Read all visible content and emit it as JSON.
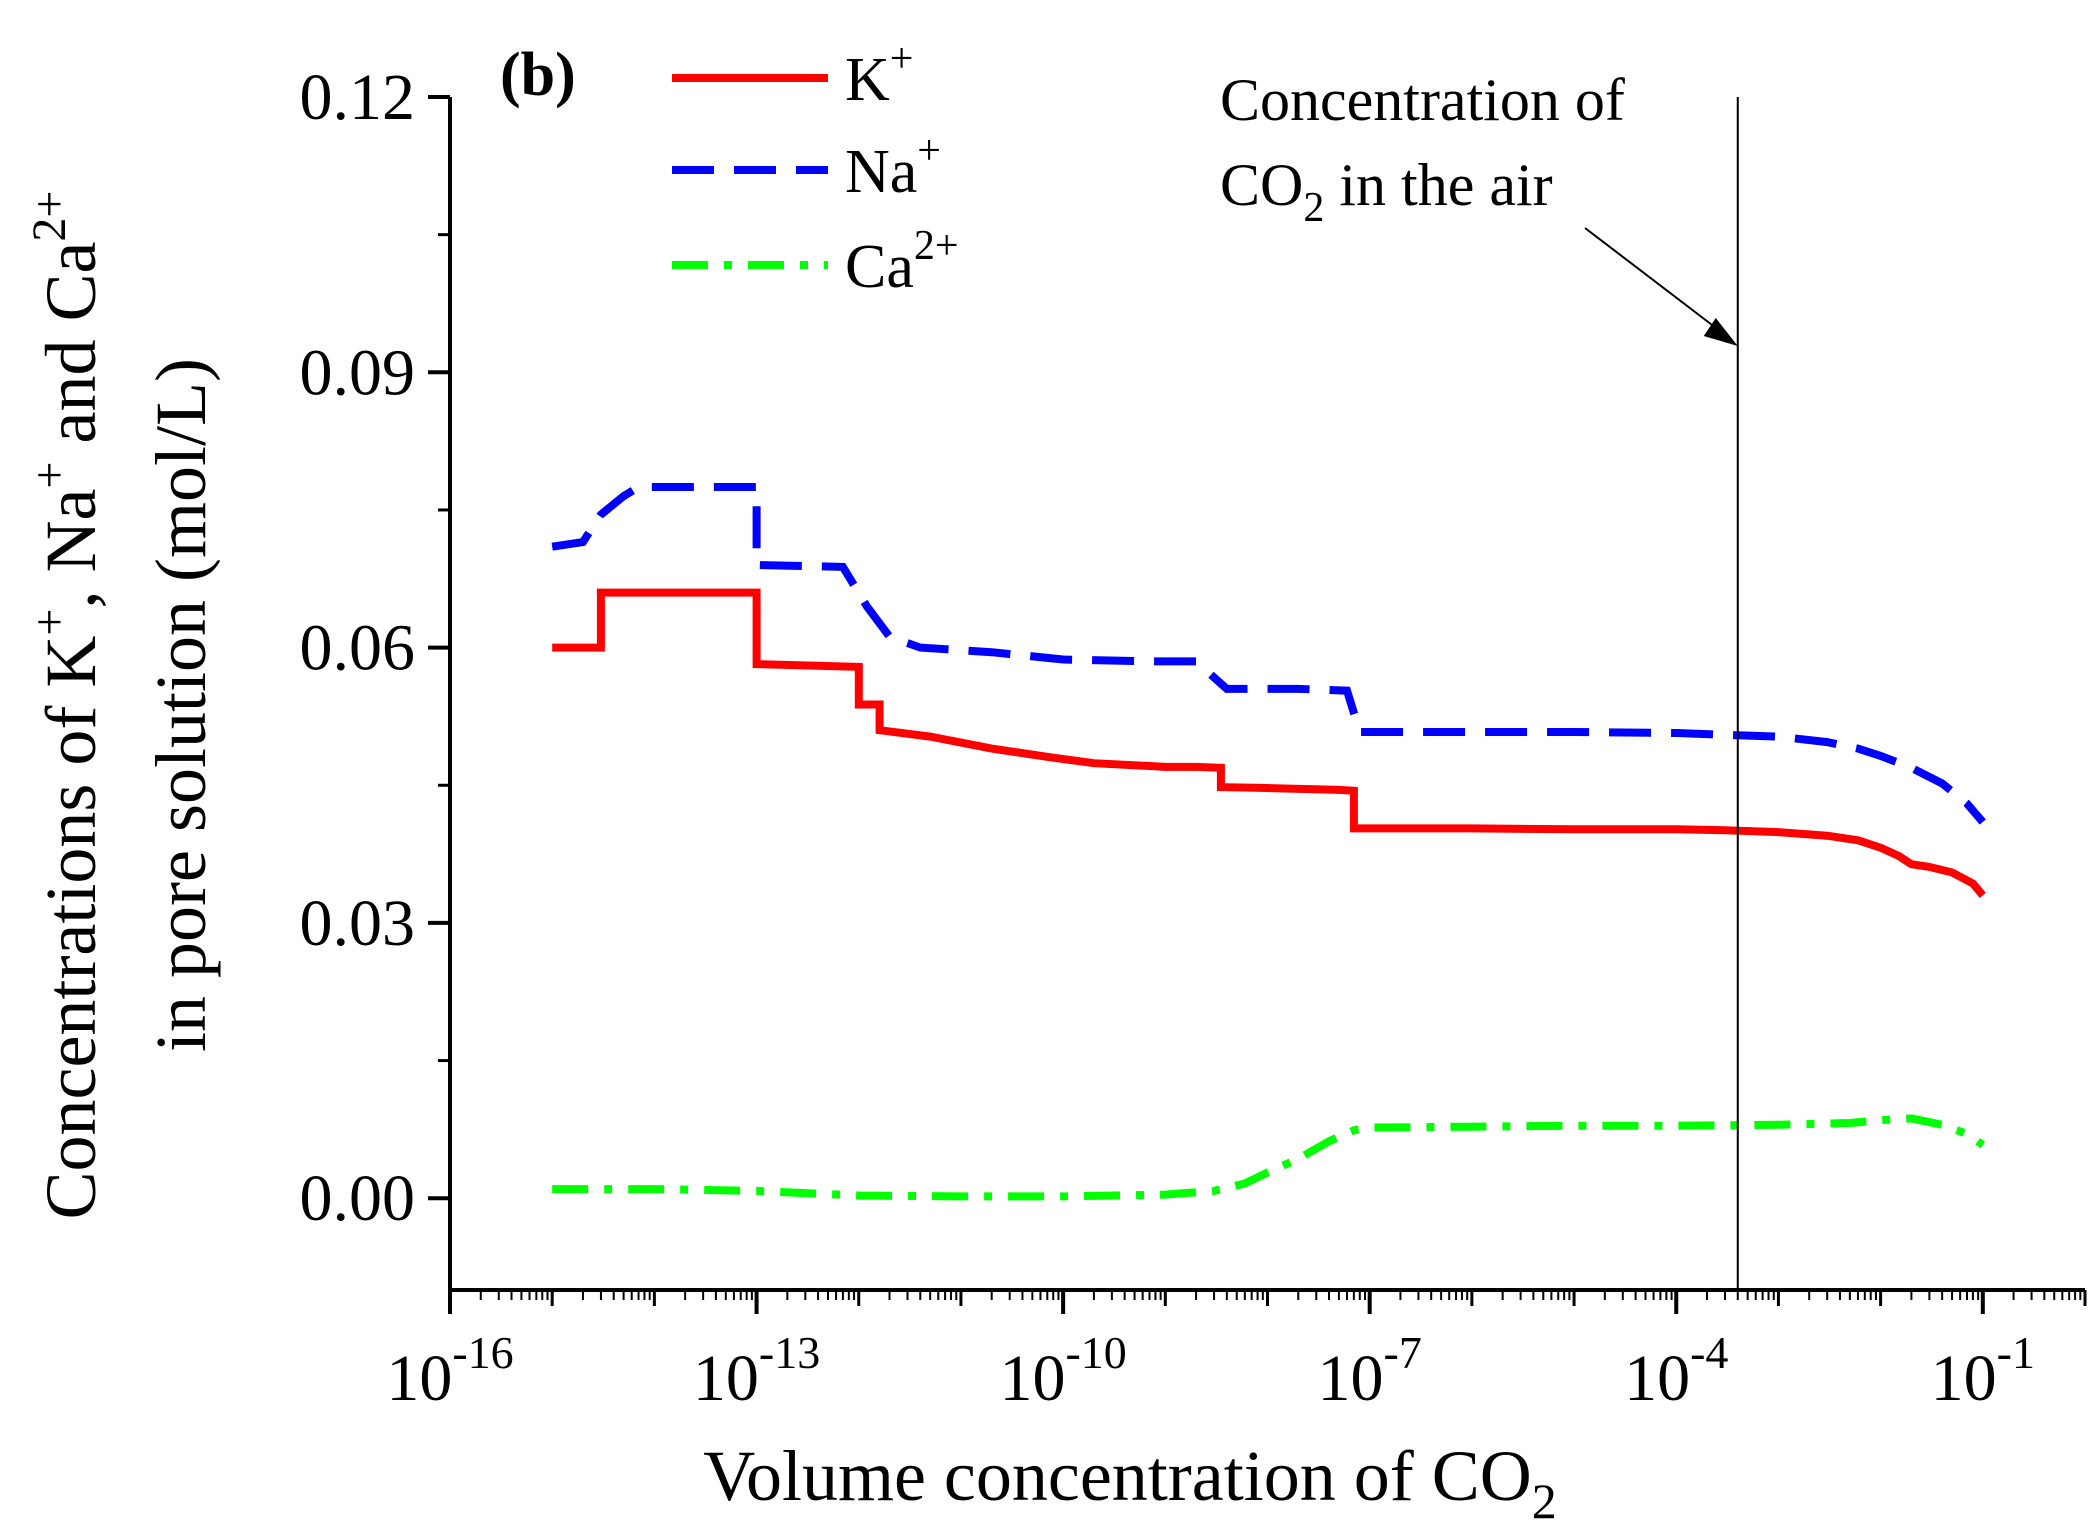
{
  "chart_data": {
    "type": "line",
    "panel_label": "(b)",
    "xlabel": {
      "main": "Volume concentration of CO",
      "sub": "2"
    },
    "ylabel": {
      "line1": [
        {
          "t": "Concentrations of K",
          "sup": false
        },
        {
          "t": "+",
          "sup": true
        },
        {
          "t": ", Na",
          "sup": false
        },
        {
          "t": "+",
          "sup": true
        },
        {
          "t": " and Ca",
          "sup": false
        },
        {
          "t": "2+",
          "sup": true
        }
      ],
      "line2": "in pore solution (mol/L)"
    },
    "x_scale": "log",
    "xlim": [
      1e-16,
      1
    ],
    "ylim": [
      -0.01,
      0.12
    ],
    "x_ticks": [
      {
        "value": 1e-16,
        "base": "10",
        "exp": "-16"
      },
      {
        "value": 1e-13,
        "base": "10",
        "exp": "-13"
      },
      {
        "value": 1e-10,
        "base": "10",
        "exp": "-10"
      },
      {
        "value": 1e-07,
        "base": "10",
        "exp": "-7"
      },
      {
        "value": 0.0001,
        "base": "10",
        "exp": "-4"
      },
      {
        "value": 0.1,
        "base": "10",
        "exp": "-1"
      }
    ],
    "y_ticks": [
      {
        "value": 0.0,
        "label": "0.00"
      },
      {
        "value": 0.03,
        "label": "0.03"
      },
      {
        "value": 0.06,
        "label": "0.06"
      },
      {
        "value": 0.09,
        "label": "0.09"
      },
      {
        "value": 0.12,
        "label": "0.12"
      }
    ],
    "grid": false,
    "legend_position": "top-left",
    "series": [
      {
        "name": "K",
        "name_sup": "+",
        "color": "#ff0000",
        "dash": "solid",
        "points": [
          [
            1e-15,
            0.06
          ],
          [
            3e-15,
            0.06
          ],
          [
            3e-15,
            0.066
          ],
          [
            1e-13,
            0.066
          ],
          [
            1e-13,
            0.0582
          ],
          [
            1e-12,
            0.0579
          ],
          [
            1e-12,
            0.0538
          ],
          [
            1.6e-12,
            0.0538
          ],
          [
            1.6e-12,
            0.051
          ],
          [
            5e-12,
            0.0503
          ],
          [
            2e-11,
            0.049
          ],
          [
            8e-11,
            0.048
          ],
          [
            2e-10,
            0.0474
          ],
          [
            7e-10,
            0.0471
          ],
          [
            1e-09,
            0.047
          ],
          [
            2e-09,
            0.047
          ],
          [
            3.5e-09,
            0.0469
          ],
          [
            3.5e-09,
            0.0448
          ],
          [
            1e-08,
            0.0447
          ],
          [
            5e-08,
            0.0445
          ],
          [
            7e-08,
            0.0444
          ],
          [
            7e-08,
            0.0403
          ],
          [
            1e-06,
            0.0403
          ],
          [
            1e-05,
            0.0402
          ],
          [
            0.0001,
            0.0402
          ],
          [
            0.0003,
            0.0401
          ],
          [
            0.001,
            0.0399
          ],
          [
            0.003,
            0.0395
          ],
          [
            0.006,
            0.039
          ],
          [
            0.01,
            0.0382
          ],
          [
            0.015,
            0.0373
          ],
          [
            0.02,
            0.0364
          ],
          [
            0.03,
            0.0361
          ],
          [
            0.05,
            0.0355
          ],
          [
            0.08,
            0.0343
          ],
          [
            0.1,
            0.033
          ]
        ]
      },
      {
        "name": "Na",
        "name_sup": "+",
        "color": "#0000ff",
        "dash": "dashed",
        "points": [
          [
            1e-15,
            0.071
          ],
          [
            2e-15,
            0.0715
          ],
          [
            3e-15,
            0.0745
          ],
          [
            5e-15,
            0.0765
          ],
          [
            7e-15,
            0.0775
          ],
          [
            1e-13,
            0.0775
          ],
          [
            1e-13,
            0.069
          ],
          [
            7e-13,
            0.0688
          ],
          [
            1.2e-12,
            0.0645
          ],
          [
            2e-12,
            0.0612
          ],
          [
            4e-12,
            0.06
          ],
          [
            2e-11,
            0.0595
          ],
          [
            1e-10,
            0.0587
          ],
          [
            7e-10,
            0.0585
          ],
          [
            2e-09,
            0.0585
          ],
          [
            4e-09,
            0.0555
          ],
          [
            2e-08,
            0.0555
          ],
          [
            6e-08,
            0.0553
          ],
          [
            8e-08,
            0.0508
          ],
          [
            1e-06,
            0.0508
          ],
          [
            1e-05,
            0.0508
          ],
          [
            0.0001,
            0.0507
          ],
          [
            0.0003,
            0.0505
          ],
          [
            0.001,
            0.0503
          ],
          [
            0.003,
            0.0497
          ],
          [
            0.006,
            0.049
          ],
          [
            0.01,
            0.0482
          ],
          [
            0.02,
            0.0469
          ],
          [
            0.04,
            0.0452
          ],
          [
            0.07,
            0.043
          ],
          [
            0.1,
            0.041
          ]
        ]
      },
      {
        "name": "Ca",
        "name_sup": "2+",
        "color": "#00ff00",
        "dash": "dashdot",
        "points": [
          [
            1e-15,
            0.001
          ],
          [
            1e-14,
            0.001
          ],
          [
            1e-13,
            0.0008
          ],
          [
            1e-12,
            0.0003
          ],
          [
            1e-11,
            0.0002
          ],
          [
            1e-10,
            0.0002
          ],
          [
            1e-09,
            0.0004
          ],
          [
            3e-09,
            0.0008
          ],
          [
            6e-09,
            0.0016
          ],
          [
            1e-08,
            0.0028
          ],
          [
            2e-08,
            0.0043
          ],
          [
            4e-08,
            0.0062
          ],
          [
            7e-08,
            0.0074
          ],
          [
            1e-07,
            0.0077
          ],
          [
            1e-06,
            0.0078
          ],
          [
            1e-05,
            0.0079
          ],
          [
            0.0001,
            0.0079
          ],
          [
            0.001,
            0.008
          ],
          [
            0.005,
            0.0082
          ],
          [
            0.01,
            0.0085
          ],
          [
            0.02,
            0.0087
          ],
          [
            0.04,
            0.008
          ],
          [
            0.07,
            0.007
          ],
          [
            0.1,
            0.0058
          ]
        ]
      }
    ],
    "reference_line": {
      "x": 0.0004,
      "label_line1": "Concentration of",
      "label_line2_main": "CO",
      "label_line2_sub": "2",
      "label_line2_rest": " in the air"
    }
  }
}
